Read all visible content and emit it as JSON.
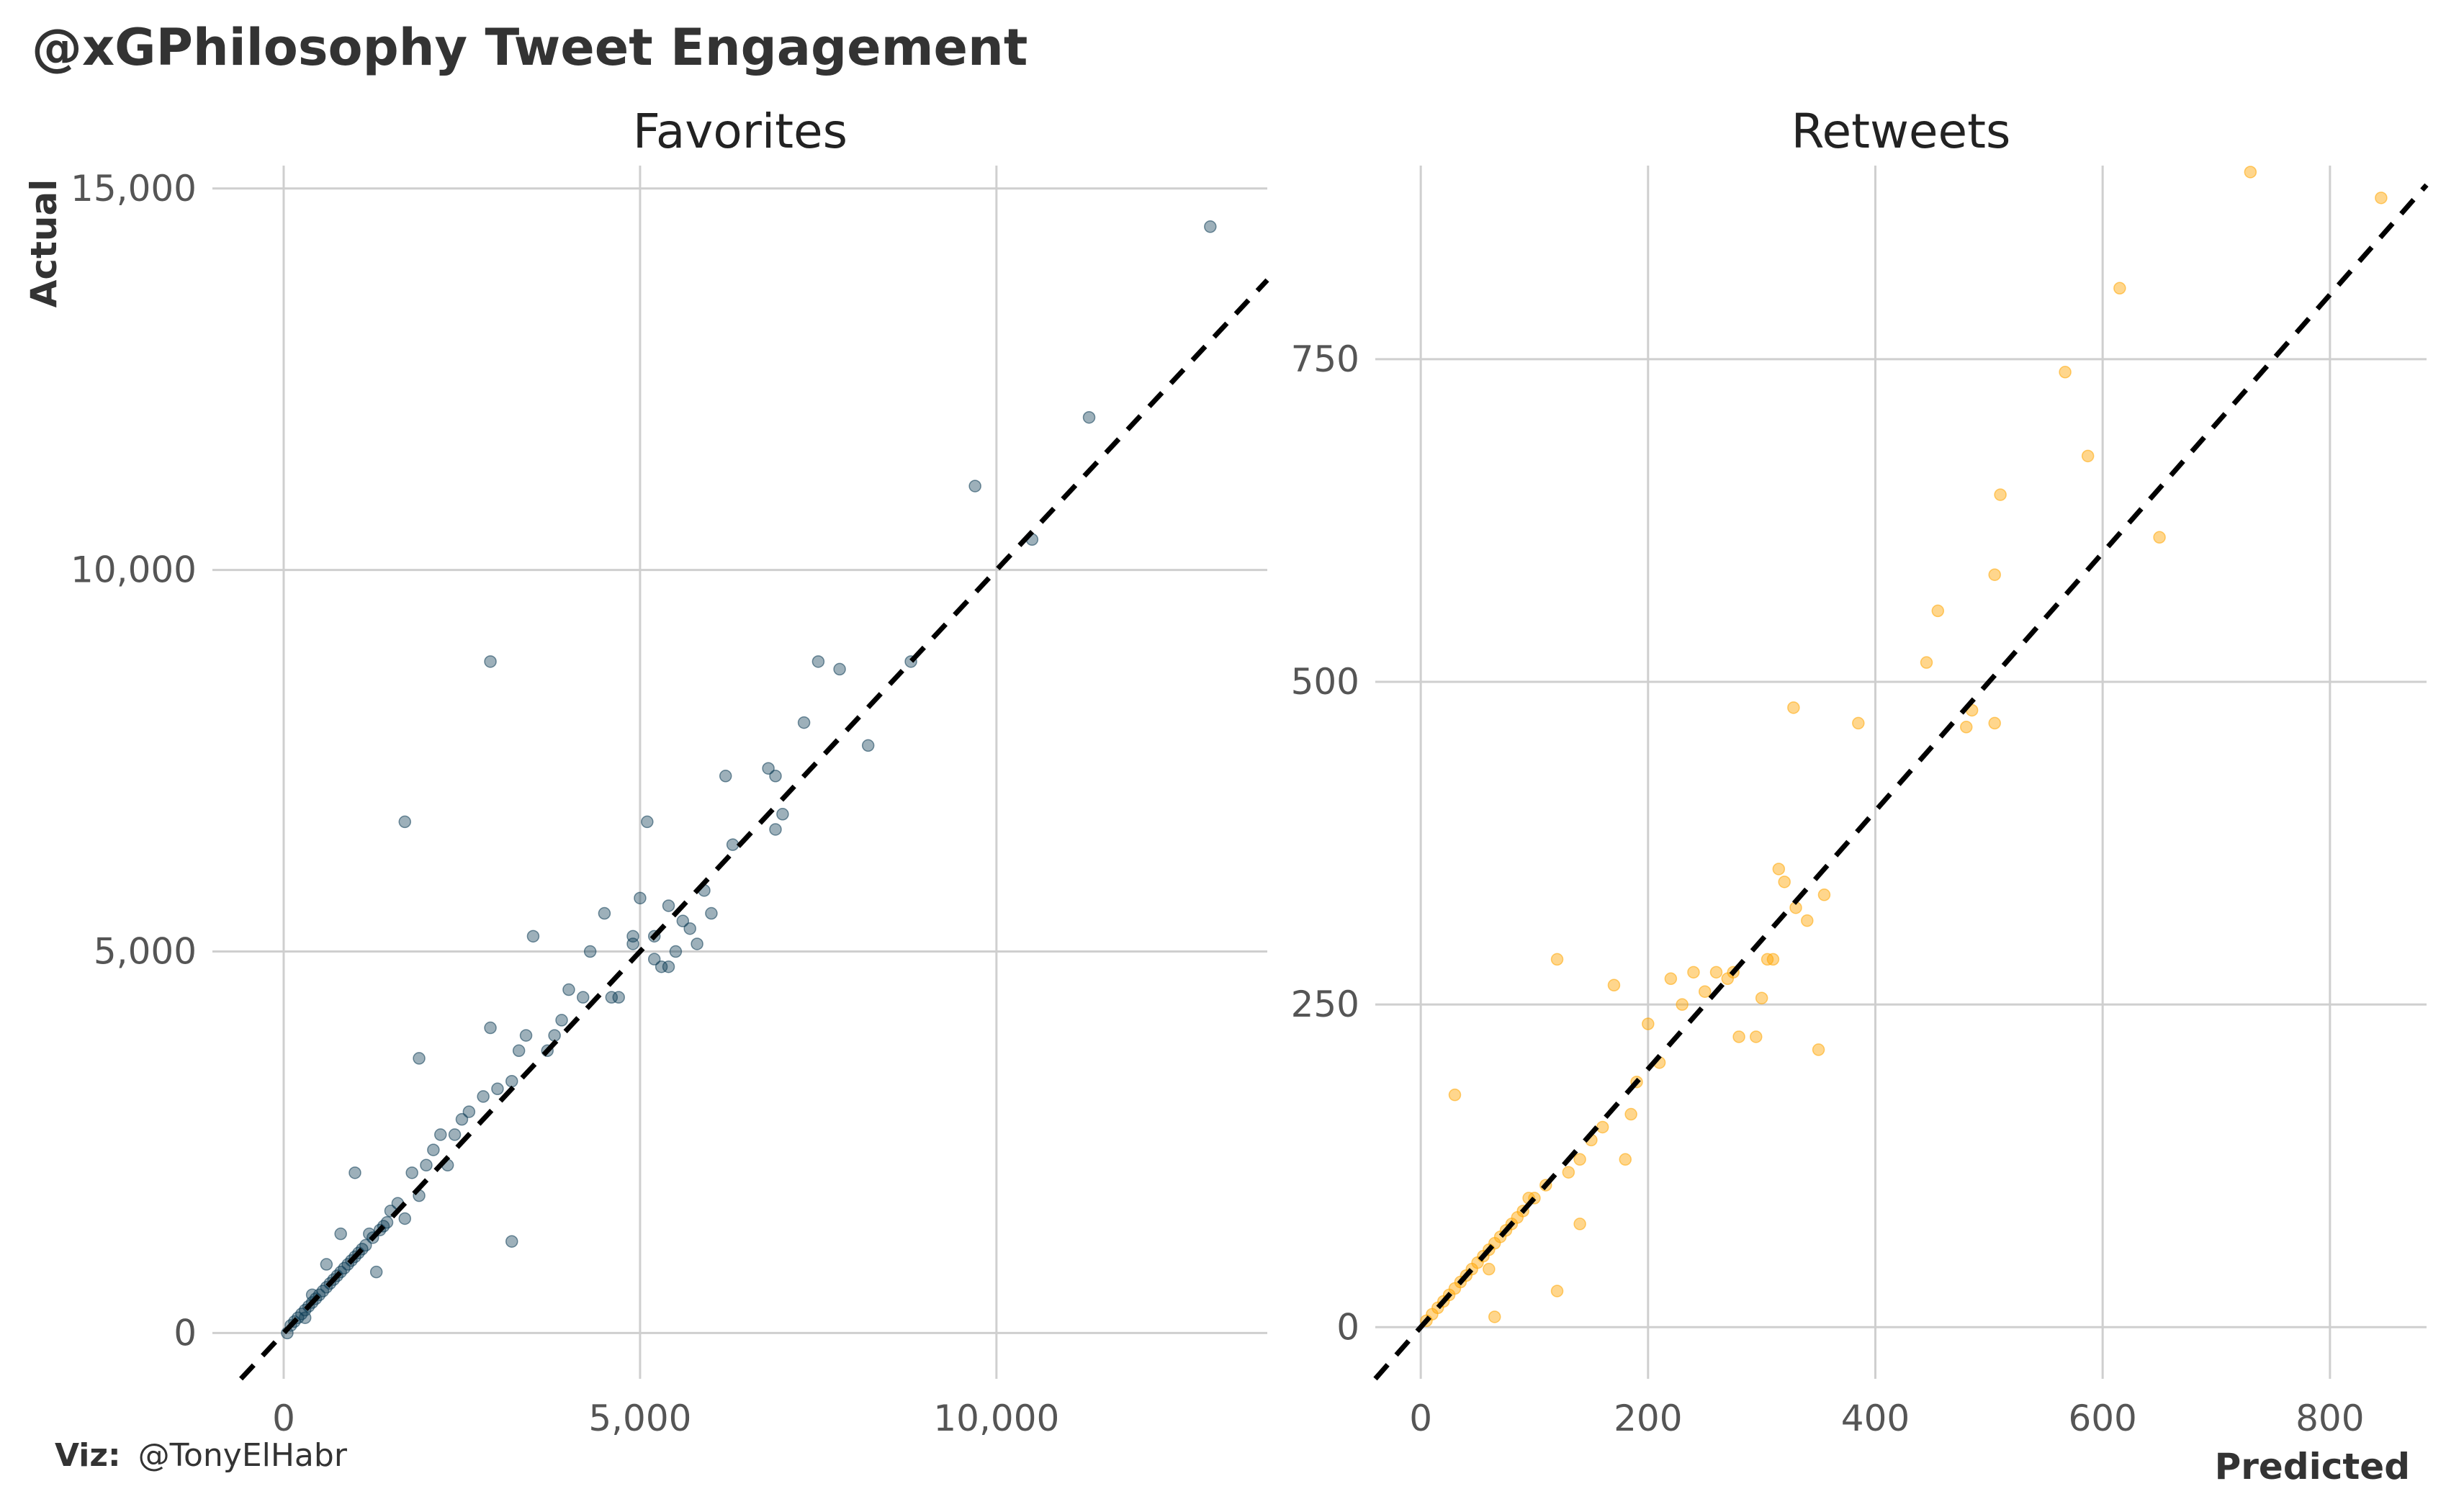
{
  "title": "@xGPhilosophy Tweet Engagement",
  "caption": {
    "prefix": "Viz:",
    "handle": "@TonyElHabr"
  },
  "axis_titles": {
    "x": "Predicted",
    "y": "Actual"
  },
  "colors": {
    "favorites": "#0b3a53",
    "retweets": "#ffa500",
    "reference_line": "#000000",
    "grid": "#cfcfcf"
  },
  "chart_data": [
    {
      "type": "scatter",
      "name": "Favorites",
      "xlabel": "Predicted",
      "ylabel": "Actual",
      "xlim": [
        -1000,
        13800
      ],
      "ylim": [
        -600,
        15300
      ],
      "xticks": [
        0,
        5000,
        10000
      ],
      "xtick_labels": [
        "0",
        "5,000",
        "10,000"
      ],
      "yticks": [
        0,
        5000,
        10000,
        15000
      ],
      "ytick_labels": [
        "0",
        "5,000",
        "10,000",
        "15,000"
      ],
      "reference_line": "y = x (dashed)",
      "grid": true,
      "x": [
        13000,
        11300,
        9700,
        10500,
        2900,
        1700,
        8800,
        7500,
        7800,
        7300,
        8200,
        6800,
        6900,
        7000,
        6900,
        6200,
        6300,
        5200,
        3500,
        5000,
        5100,
        4900,
        4500,
        4300,
        5400,
        5600,
        5300,
        5700,
        5900,
        6000,
        5800,
        5400,
        5500,
        5200,
        4900,
        4700,
        4600,
        3900,
        3800,
        3700,
        4000,
        4200,
        3300,
        3400,
        3200,
        3000,
        2800,
        2500,
        2600,
        2400,
        2900,
        3200,
        1900,
        2200,
        2100,
        2000,
        1800,
        1900,
        1600,
        1500,
        1400,
        1200,
        1100,
        1000,
        900,
        800,
        700,
        600,
        500,
        400,
        300,
        200,
        100,
        50,
        150,
        250,
        350,
        450,
        550,
        650,
        750,
        850,
        950,
        1050,
        1150,
        1250,
        1350,
        1450,
        1700,
        2300,
        1000,
        600,
        400,
        300,
        800,
        1300
      ],
      "y": [
        14500,
        12000,
        11100,
        10400,
        8800,
        6700,
        8800,
        8800,
        8700,
        8000,
        7700,
        7400,
        7300,
        6800,
        6600,
        7300,
        6400,
        5200,
        5200,
        5700,
        6700,
        5100,
        5500,
        5000,
        5600,
        5400,
        4800,
        5300,
        5800,
        5500,
        5100,
        4800,
        5000,
        4900,
        5200,
        4400,
        4400,
        4100,
        3900,
        3700,
        4500,
        4400,
        3700,
        3900,
        3300,
        3200,
        3100,
        2800,
        2900,
        2600,
        4000,
        1200,
        3600,
        2600,
        2400,
        2200,
        2100,
        1800,
        1700,
        1600,
        1400,
        1300,
        1100,
        1000,
        900,
        800,
        700,
        600,
        500,
        400,
        300,
        200,
        100,
        0,
        150,
        250,
        350,
        450,
        550,
        650,
        750,
        850,
        950,
        1050,
        1150,
        1250,
        1350,
        1450,
        1500,
        2200,
        2100,
        900,
        500,
        200,
        1300,
        800
      ]
    },
    {
      "type": "scatter",
      "name": "Retweets",
      "xlabel": "Predicted",
      "ylabel": "Actual",
      "xlim": [
        -40,
        885
      ],
      "ylim": [
        -40,
        900
      ],
      "xticks": [
        0,
        200,
        400,
        600,
        800
      ],
      "xtick_labels": [
        "0",
        "200",
        "400",
        "600",
        "800"
      ],
      "yticks": [
        0,
        250,
        500,
        750
      ],
      "ytick_labels": [
        "0",
        "250",
        "500",
        "750"
      ],
      "reference_line": "y = x (dashed)",
      "grid": true,
      "x": [
        730,
        845,
        615,
        567,
        587,
        510,
        650,
        505,
        455,
        445,
        485,
        480,
        505,
        385,
        328,
        315,
        320,
        330,
        340,
        355,
        310,
        300,
        275,
        270,
        280,
        295,
        305,
        350,
        120,
        170,
        200,
        220,
        230,
        240,
        250,
        260,
        210,
        190,
        160,
        150,
        140,
        130,
        110,
        100,
        90,
        80,
        70,
        60,
        50,
        40,
        30,
        20,
        10,
        5,
        15,
        25,
        35,
        45,
        55,
        65,
        75,
        85,
        95,
        30,
        65,
        120,
        140,
        60,
        185,
        180
      ],
      "y": [
        895,
        875,
        805,
        740,
        675,
        645,
        612,
        583,
        555,
        515,
        478,
        465,
        468,
        468,
        480,
        355,
        345,
        325,
        315,
        335,
        285,
        255,
        275,
        270,
        225,
        225,
        285,
        215,
        285,
        265,
        235,
        270,
        250,
        275,
        260,
        275,
        205,
        190,
        155,
        145,
        130,
        120,
        110,
        100,
        90,
        80,
        70,
        60,
        50,
        40,
        30,
        20,
        10,
        5,
        15,
        25,
        35,
        45,
        55,
        65,
        75,
        85,
        100,
        180,
        8,
        28,
        80,
        45,
        165,
        130
      ]
    }
  ]
}
